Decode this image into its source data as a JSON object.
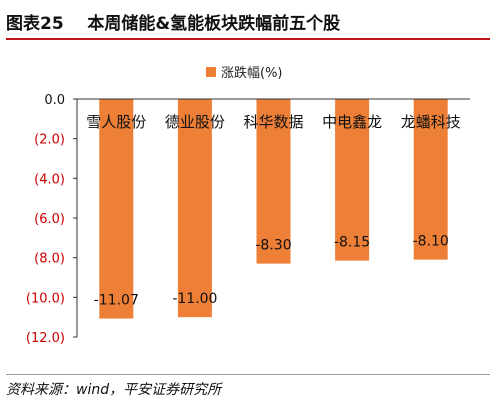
{
  "figure": {
    "label": "图表25",
    "title": "本周储能&氢能板块跌幅前五个股"
  },
  "source": "资料来源：wind，平安证券研究所",
  "colors": {
    "bar": "#ee7f37",
    "negative_tick": "#cc0000",
    "title_rule": "#c2141b"
  },
  "chart_data": {
    "type": "bar",
    "categories": [
      "雪人股份",
      "德业股份",
      "科华数据",
      "中电鑫龙",
      "龙蟠科技"
    ],
    "series": [
      {
        "name": "涨跌幅(%)",
        "values": [
          -11.07,
          -11.0,
          -8.3,
          -8.15,
          -8.1
        ],
        "labels": [
          "-11.07",
          "-11.00",
          "-8.30",
          "-8.15",
          "-8.10"
        ]
      }
    ],
    "yticks": [
      0,
      -2,
      -4,
      -6,
      -8,
      -10,
      -12
    ],
    "ytick_labels": [
      "0.0",
      "(2.0)",
      "(4.0)",
      "(6.0)",
      "(8.0)",
      "(10.0)",
      "(12.0)"
    ],
    "ylim": [
      -12,
      0
    ],
    "legend": "top",
    "grid": false
  }
}
